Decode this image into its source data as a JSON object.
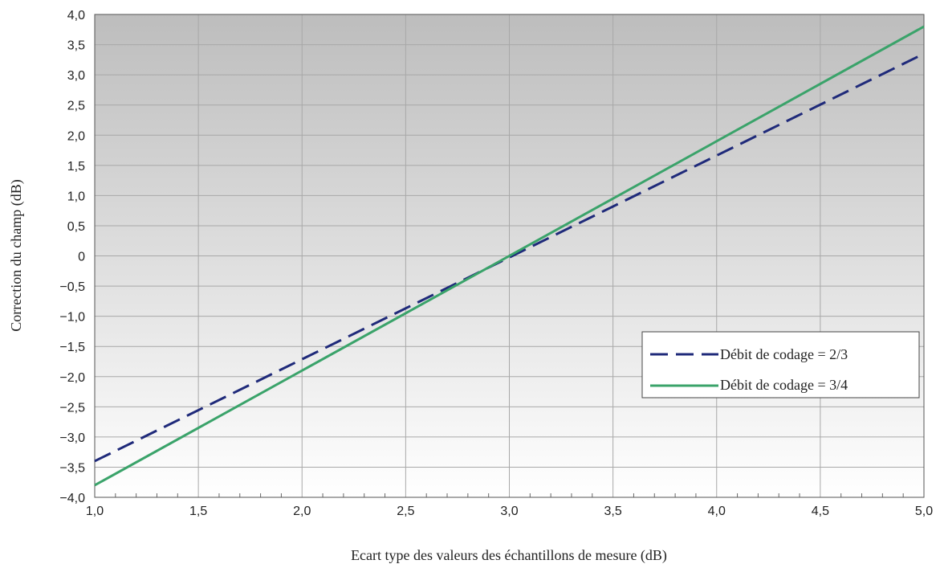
{
  "chart_data": {
    "type": "line",
    "title": "",
    "xlabel": "Ecart type des valeurs des échantillons de mesure (dB)",
    "ylabel": "Correction du champ (dB)",
    "xlim": [
      1.0,
      5.0
    ],
    "ylim": [
      -4.0,
      4.0
    ],
    "x_ticks": [
      "1,0",
      "1,5",
      "2,0",
      "2,5",
      "3,0",
      "3,5",
      "4,0",
      "4,5",
      "5,0"
    ],
    "y_ticks": [
      "4,0",
      "3,5",
      "3,0",
      "2,5",
      "2,0",
      "1,5",
      "1,0",
      "0,5",
      "0",
      "−0,5",
      "−1,0",
      "−1,5",
      "−2,0",
      "−2,5",
      "−3,0",
      "−3,5",
      "−4,0"
    ],
    "grid": true,
    "legend_position": "center-right",
    "series": [
      {
        "name": "Débit de codage = 2/3",
        "style": "dashed",
        "color": "#1f2a7a",
        "x": [
          1.0,
          5.0
        ],
        "y": [
          -3.4,
          3.35
        ]
      },
      {
        "name": "Débit de codage = 3/4",
        "style": "solid",
        "color": "#3aa36a",
        "x": [
          1.0,
          5.0
        ],
        "y": [
          -3.8,
          3.8
        ]
      }
    ]
  }
}
